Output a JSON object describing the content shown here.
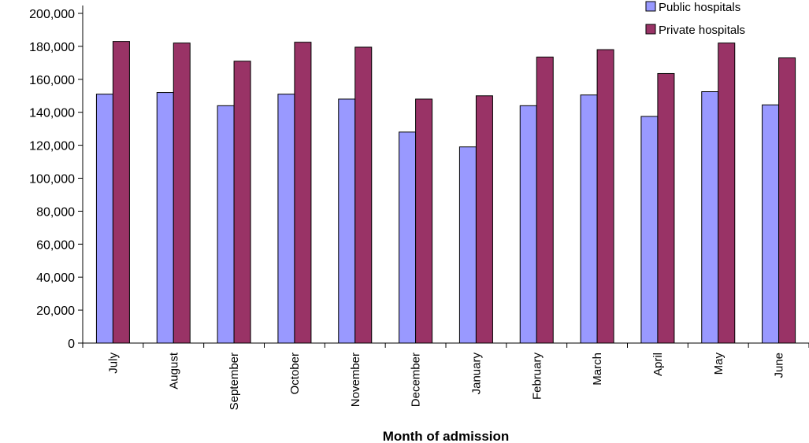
{
  "chart_data": {
    "type": "bar",
    "title": "",
    "xlabel": "Month of admission",
    "ylabel": "",
    "ylim": [
      0,
      200000
    ],
    "ytick_step": 20000,
    "ytick_labels": [
      "0",
      "20,000",
      "40,000",
      "60,000",
      "80,000",
      "100,000",
      "120,000",
      "140,000",
      "160,000",
      "180,000",
      "200,000"
    ],
    "categories": [
      "July",
      "August",
      "September",
      "October",
      "November",
      "December",
      "January",
      "February",
      "March",
      "April",
      "May",
      "June"
    ],
    "series": [
      {
        "name": "Public hospitals",
        "color": "#9999ff",
        "values": [
          151000,
          152000,
          144000,
          151000,
          148000,
          128000,
          119000,
          144000,
          150500,
          137500,
          152500,
          144500
        ]
      },
      {
        "name": "Private hospitals",
        "color": "#993366",
        "values": [
          183000,
          182000,
          171000,
          182500,
          179500,
          148000,
          150000,
          173500,
          178000,
          163500,
          182000,
          173000
        ]
      }
    ],
    "legend_position": "top-right",
    "grid": false
  }
}
